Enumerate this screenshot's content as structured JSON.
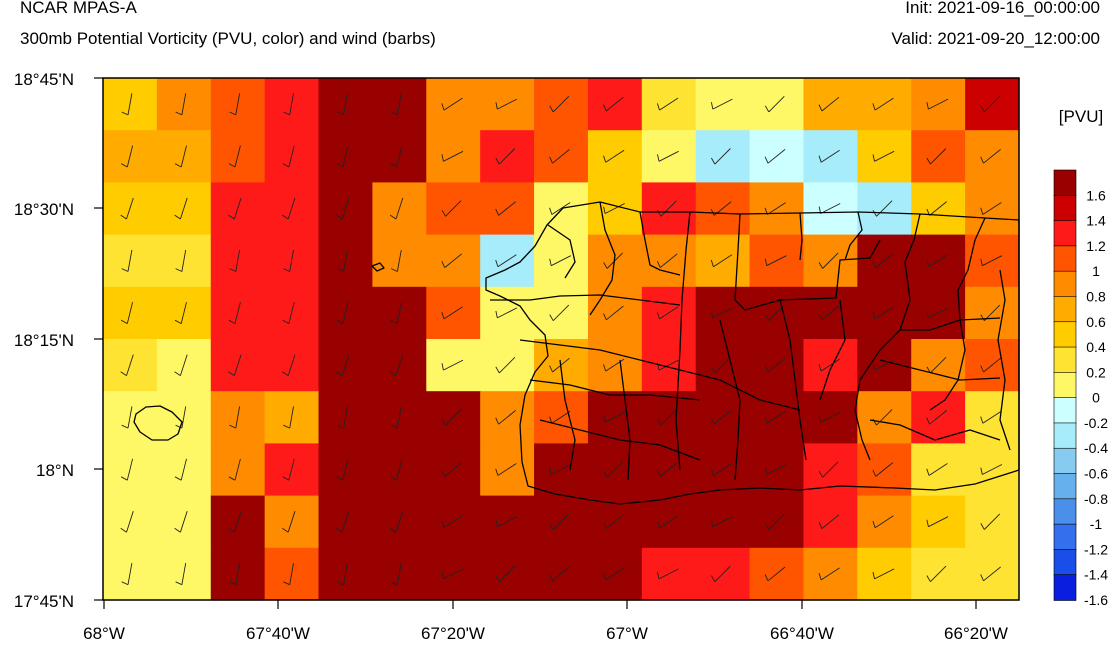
{
  "titles": {
    "left_main": "NCAR MPAS-A",
    "left_sub": "300mb Potential Vorticity (PVU, color) and wind (barbs)",
    "right_init": "Init: 2021-09-16_00:00:00",
    "right_valid": "Valid: 2021-09-20_12:00:00"
  },
  "axes": {
    "x_ticks": [
      "68°W",
      "67°40'W",
      "67°20'W",
      "67°W",
      "66°40'W",
      "66°20'W"
    ],
    "y_ticks": [
      "18°45'N",
      "18°30'N",
      "18°15'N",
      "18°N",
      "17°45'N"
    ]
  },
  "colorbar": {
    "title": "[PVU]",
    "labels": [
      "1.6",
      "1.4",
      "1.2",
      "1",
      "0.8",
      "0.6",
      "0.4",
      "0.2",
      "0",
      "-0.2",
      "-0.4",
      "-0.6",
      "-0.8",
      "-1",
      "-1.2",
      "-1.4",
      "-1.6"
    ],
    "colors": [
      "#990000",
      "#cc0000",
      "#ff1a1a",
      "#ff5500",
      "#ff8c00",
      "#ffab00",
      "#ffcc00",
      "#ffe333",
      "#fff866",
      "#ccffff",
      "#a6ecfa",
      "#87ccf0",
      "#66b0ee",
      "#4a90ea",
      "#3370ee",
      "#1a4ee8",
      "#0a1ee0"
    ]
  },
  "map_data": {
    "field": "300mb potential vorticity (PVU)",
    "extent": {
      "lon": [
        -68.0,
        -66.25
      ],
      "lat": [
        17.75,
        18.75
      ]
    },
    "grid_rows_north_to_south": [
      "55BB..88BB...55CCC.5..",
      "4555BB.....9669888....",
      "4455BB7677779658777667",
      "44551.76.26.66888777444",
      "44BBB.....75555655..6744",
      "4455B....6655.668..5555",
      "3344.....334......66555",
      "33...5...333....3.333555",
      "43B....BBBB..B..33222334",
      "3B.....BBBB7.7.7533222333"
    ]
  }
}
